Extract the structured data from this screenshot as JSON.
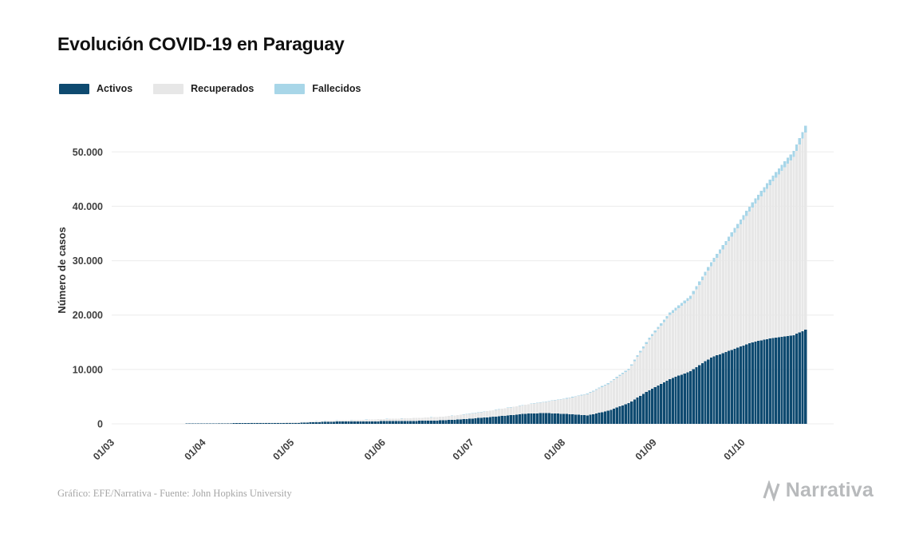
{
  "page": {
    "title": "Evolución COVID-19 en Paraguay",
    "footer_credit": "Gráfico: EFE/Narrativa - Fuente: John Hopkins University",
    "brand": "Narrativa"
  },
  "legend": {
    "items": [
      {
        "label": "Activos",
        "color": "#0e4a70"
      },
      {
        "label": "Recuperados",
        "color": "#e7e7e7"
      },
      {
        "label": "Fallecidos",
        "color": "#a8d6e8"
      }
    ]
  },
  "chart_data": {
    "type": "bar",
    "stacked": true,
    "title": "Evolución COVID-19 en Paraguay",
    "xlabel": "",
    "ylabel": "Número de casos",
    "ylim": [
      0,
      56500
    ],
    "grid": true,
    "legend_position": "top-left",
    "x_unit": "days since 01/03/2020",
    "x_domain_days": 245,
    "yticks": [
      {
        "value": 0,
        "label": "0"
      },
      {
        "value": 10000,
        "label": "10.000"
      },
      {
        "value": 20000,
        "label": "20.000"
      },
      {
        "value": 30000,
        "label": "30.000"
      },
      {
        "value": 40000,
        "label": "40.000"
      },
      {
        "value": 50000,
        "label": "50.000"
      }
    ],
    "xticks": [
      {
        "day": 0,
        "label": "01/03"
      },
      {
        "day": 31,
        "label": "01/04"
      },
      {
        "day": 61,
        "label": "01/05"
      },
      {
        "day": 92,
        "label": "01/06"
      },
      {
        "day": 122,
        "label": "01/07"
      },
      {
        "day": 153,
        "label": "01/08"
      },
      {
        "day": 184,
        "label": "01/09"
      },
      {
        "day": 214,
        "label": "01/10"
      }
    ],
    "days": [
      0,
      7,
      14,
      21,
      28,
      35,
      42,
      49,
      56,
      63,
      70,
      77,
      84,
      91,
      98,
      105,
      112,
      119,
      126,
      133,
      140,
      147,
      154,
      161,
      168,
      175,
      182,
      189,
      196,
      203,
      210,
      217,
      224,
      231,
      235
    ],
    "series": [
      {
        "name": "Activos",
        "color": "#0e4a70",
        "values": [
          1,
          2,
          8,
          22,
          50,
          90,
          115,
          130,
          125,
          180,
          330,
          420,
          450,
          480,
          520,
          560,
          640,
          850,
          1150,
          1500,
          1850,
          2000,
          1800,
          1550,
          2400,
          3800,
          6200,
          8200,
          9700,
          12200,
          13600,
          15000,
          15800,
          16300,
          17300
        ]
      },
      {
        "name": "Recuperados",
        "color": "#e7e7e7",
        "values": [
          0,
          0,
          1,
          2,
          7,
          15,
          40,
          70,
          95,
          130,
          170,
          220,
          280,
          390,
          470,
          560,
          680,
          870,
          1080,
          1350,
          1650,
          2050,
          2850,
          3900,
          4900,
          6100,
          9300,
          11800,
          13300,
          16800,
          20800,
          24800,
          28800,
          32800,
          36300
        ]
      },
      {
        "name": "Fallecidos",
        "color": "#a8d6e8",
        "values": [
          0,
          0,
          1,
          2,
          3,
          5,
          6,
          8,
          9,
          10,
          11,
          11,
          12,
          13,
          14,
          15,
          16,
          20,
          25,
          35,
          50,
          70,
          90,
          120,
          180,
          250,
          380,
          480,
          570,
          700,
          820,
          930,
          1030,
          1120,
          1200
        ]
      }
    ]
  }
}
